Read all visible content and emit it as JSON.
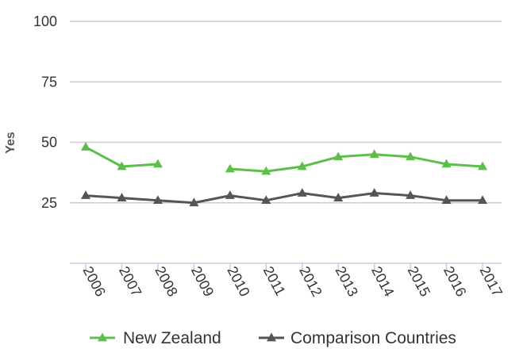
{
  "chart_data": {
    "type": "line",
    "title": "",
    "xlabel": "",
    "ylabel": "Yes",
    "ylim": [
      0,
      100
    ],
    "yticks": [
      "100",
      "75",
      "50",
      "25"
    ],
    "yticks_values": [
      100,
      75,
      50,
      25
    ],
    "categories": [
      "2006",
      "2007",
      "2008",
      "2009",
      "2010",
      "2011",
      "2012",
      "2013",
      "2014",
      "2015",
      "2016",
      "2017"
    ],
    "grid": true,
    "legend": "bottom",
    "series": [
      {
        "name": "New Zealand",
        "color": "#5cbf4a",
        "marker": "triangle",
        "values": [
          48,
          40,
          41,
          null,
          39,
          38,
          40,
          44,
          45,
          44,
          41,
          40
        ]
      },
      {
        "name": "Comparison Countries",
        "color": "#555555",
        "marker": "triangle",
        "values": [
          28,
          27,
          26,
          25,
          28,
          26,
          29,
          27,
          29,
          28,
          26,
          26
        ]
      }
    ]
  }
}
